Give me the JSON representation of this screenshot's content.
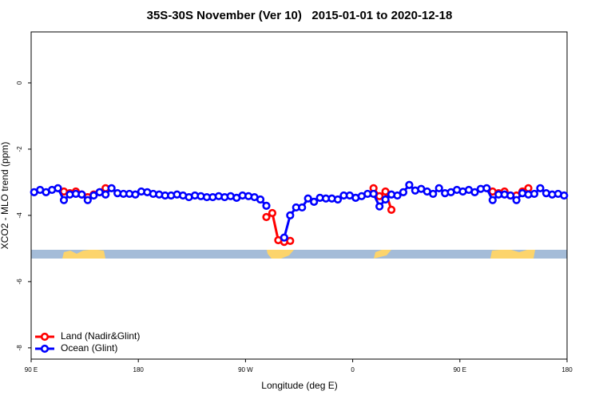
{
  "chart_data": {
    "type": "line",
    "title": "35S-30S November (Ver 10)   2015-01-01 to 2020-12-18",
    "x_label": "Longitude (deg E)",
    "y_label": "XCO2 - MLO trend (ppm)",
    "xlim": [
      90,
      540
    ],
    "xticks": [
      {
        "value": 90,
        "label": "90 E"
      },
      {
        "value": 180,
        "label": "180"
      },
      {
        "value": 270,
        "label": "90 W"
      },
      {
        "value": 360,
        "label": "0"
      },
      {
        "value": 450,
        "label": "90 E"
      },
      {
        "value": 540,
        "label": "180"
      }
    ],
    "ylim": [
      -8.34,
      1.54
    ],
    "yticks": [
      0,
      -2,
      -4,
      -6,
      -8
    ],
    "legend": "bottom-left",
    "x": [
      92.5,
      97.5,
      102.5,
      107.5,
      112.5,
      117.5,
      122.5,
      127.5,
      132.5,
      137.5,
      142.5,
      147.5,
      152.5,
      157.5,
      162.5,
      167.5,
      172.5,
      177.5,
      182.5,
      187.5,
      192.5,
      197.5,
      202.5,
      207.5,
      212.5,
      217.5,
      222.5,
      227.5,
      232.5,
      237.5,
      242.5,
      247.5,
      252.5,
      257.5,
      262.5,
      267.5,
      272.5,
      277.5,
      282.5,
      287.5,
      292.5,
      297.5,
      302.5,
      307.5,
      312.5,
      317.5,
      322.5,
      327.5,
      332.5,
      337.5,
      342.5,
      347.5,
      352.5,
      357.5,
      362.5,
      367.5,
      372.5,
      377.5,
      382.5,
      387.5,
      392.5,
      397.5,
      402.5,
      407.5,
      412.5,
      417.5,
      422.5,
      427.5,
      432.5,
      437.5,
      442.5,
      447.5,
      452.5,
      457.5,
      462.5,
      467.5,
      472.5,
      477.5,
      482.5,
      487.5,
      492.5,
      497.5,
      502.5,
      507.5,
      512.5,
      517.5,
      522.5,
      527.5,
      532.5,
      537.5
    ],
    "series": [
      {
        "name": "Land (Nadir&Glint)",
        "color": "#ff0000",
        "values": [
          null,
          null,
          null,
          null,
          null,
          -3.28,
          -3.33,
          -3.28,
          -3.37,
          -3.45,
          -3.37,
          -3.3,
          -3.18,
          null,
          null,
          null,
          null,
          null,
          null,
          null,
          null,
          null,
          null,
          null,
          null,
          null,
          null,
          null,
          null,
          null,
          null,
          null,
          null,
          null,
          null,
          null,
          null,
          null,
          null,
          -4.05,
          -3.93,
          -4.75,
          -4.8,
          -4.77,
          null,
          null,
          null,
          null,
          null,
          null,
          null,
          null,
          null,
          null,
          null,
          null,
          null,
          -3.18,
          -3.42,
          -3.28,
          -3.83,
          null,
          null,
          null,
          null,
          null,
          null,
          null,
          null,
          null,
          null,
          null,
          null,
          null,
          null,
          null,
          null,
          -3.28,
          -3.33,
          -3.28,
          -3.4,
          -3.4,
          -3.28,
          -3.18,
          null,
          null,
          null,
          null,
          null,
          null
        ]
      },
      {
        "name": "Ocean (Glint)",
        "color": "#0000ff",
        "values": [
          -3.3,
          -3.23,
          -3.3,
          -3.23,
          -3.18,
          -3.54,
          -3.37,
          -3.35,
          -3.37,
          -3.54,
          -3.4,
          -3.3,
          -3.37,
          -3.18,
          -3.33,
          -3.35,
          -3.35,
          -3.37,
          -3.28,
          -3.3,
          -3.35,
          -3.37,
          -3.4,
          -3.4,
          -3.37,
          -3.4,
          -3.45,
          -3.4,
          -3.42,
          -3.45,
          -3.45,
          -3.42,
          -3.45,
          -3.42,
          -3.47,
          -3.4,
          -3.42,
          -3.45,
          -3.52,
          -3.71,
          null,
          null,
          -4.67,
          -4.0,
          -3.76,
          -3.76,
          -3.49,
          -3.59,
          -3.47,
          -3.49,
          -3.49,
          -3.52,
          -3.4,
          -3.4,
          -3.47,
          -3.42,
          -3.35,
          -3.35,
          -3.73,
          -3.52,
          -3.37,
          -3.4,
          -3.3,
          -3.08,
          -3.25,
          -3.2,
          -3.28,
          -3.35,
          -3.18,
          -3.33,
          -3.3,
          -3.23,
          -3.28,
          -3.23,
          -3.3,
          -3.2,
          -3.18,
          -3.54,
          -3.37,
          -3.37,
          -3.4,
          -3.54,
          -3.33,
          -3.37,
          -3.35,
          -3.18,
          -3.33,
          -3.37,
          -3.35,
          -3.4
        ]
      }
    ]
  }
}
